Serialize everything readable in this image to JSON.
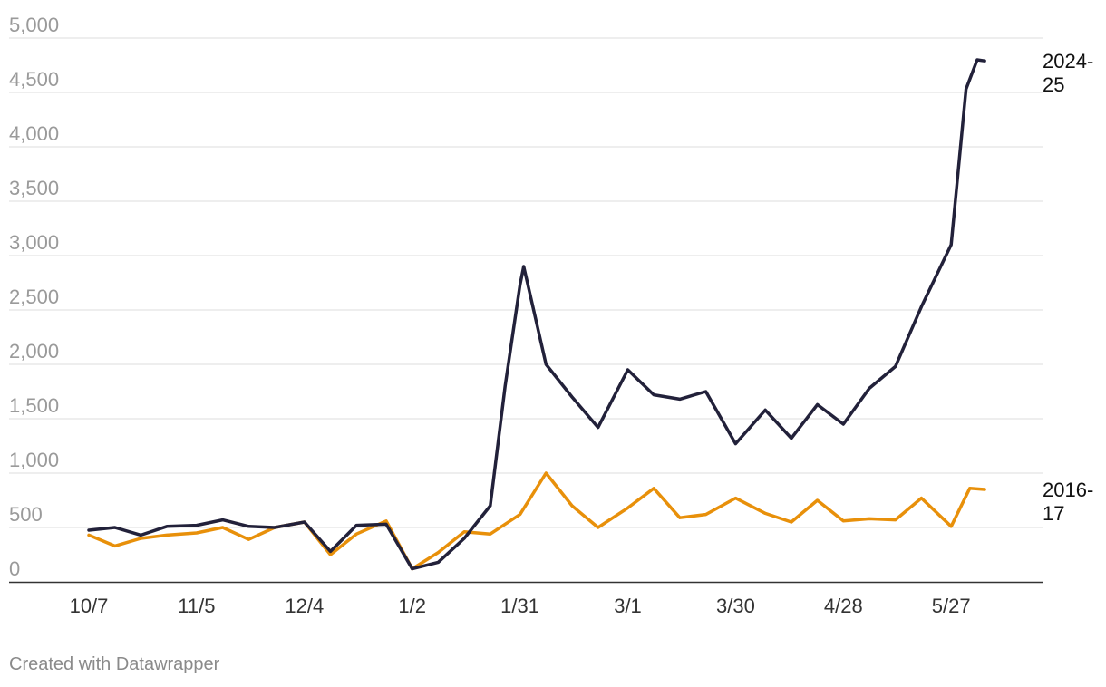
{
  "chart_data": {
    "type": "line",
    "title": "",
    "xlabel": "",
    "ylabel": "",
    "ylim": [
      0,
      5000
    ],
    "y_ticks": [
      {
        "value": 0,
        "label": "0"
      },
      {
        "value": 500,
        "label": "500"
      },
      {
        "value": 1000,
        "label": "1,000"
      },
      {
        "value": 1500,
        "label": "1,500"
      },
      {
        "value": 2000,
        "label": "2,000"
      },
      {
        "value": 2500,
        "label": "2,500"
      },
      {
        "value": 3000,
        "label": "3,000"
      },
      {
        "value": 3500,
        "label": "3,500"
      },
      {
        "value": 4000,
        "label": "4,000"
      },
      {
        "value": 4500,
        "label": "4,500"
      },
      {
        "value": 5000,
        "label": "5,000"
      }
    ],
    "x_ticks": [
      {
        "x": "10/7",
        "label": "10/7"
      },
      {
        "x": "11/5",
        "label": "11/5"
      },
      {
        "x": "12/4",
        "label": "12/4"
      },
      {
        "x": "1/2",
        "label": "1/2"
      },
      {
        "x": "1/31",
        "label": "1/31"
      },
      {
        "x": "3/1",
        "label": "3/1"
      },
      {
        "x": "3/30",
        "label": "3/30"
      },
      {
        "x": "4/28",
        "label": "4/28"
      },
      {
        "x": "5/27",
        "label": "5/27"
      }
    ],
    "grid": true,
    "legend": "labels at line ends (right)",
    "series": [
      {
        "name": "2024-25",
        "label_lines": [
          "2024-",
          "25"
        ],
        "color": "#22213a",
        "points": [
          [
            "10/7",
            475
          ],
          [
            "10/14",
            500
          ],
          [
            "10/21",
            430
          ],
          [
            "10/28",
            510
          ],
          [
            "11/5",
            520
          ],
          [
            "11/12",
            570
          ],
          [
            "11/19",
            510
          ],
          [
            "11/26",
            500
          ],
          [
            "12/4",
            550
          ],
          [
            "12/11",
            280
          ],
          [
            "12/18",
            520
          ],
          [
            "12/26",
            530
          ],
          [
            "1/2",
            120
          ],
          [
            "1/9",
            180
          ],
          [
            "1/16",
            400
          ],
          [
            "1/23",
            700
          ],
          [
            "1/27",
            1800
          ],
          [
            "1/31",
            2730
          ],
          [
            "2/1",
            2900
          ],
          [
            "2/7",
            2000
          ],
          [
            "2/14",
            1700
          ],
          [
            "2/21",
            1420
          ],
          [
            "3/1",
            1950
          ],
          [
            "3/8",
            1720
          ],
          [
            "3/15",
            1680
          ],
          [
            "3/22",
            1750
          ],
          [
            "3/30",
            1270
          ],
          [
            "4/7",
            1580
          ],
          [
            "4/14",
            1320
          ],
          [
            "4/21",
            1630
          ],
          [
            "4/28",
            1450
          ],
          [
            "5/5",
            1780
          ],
          [
            "5/12",
            1980
          ],
          [
            "5/19",
            2530
          ],
          [
            "5/27",
            3100
          ],
          [
            "5/31",
            4530
          ],
          [
            "6/3",
            4800
          ],
          [
            "6/5",
            4790
          ]
        ]
      },
      {
        "name": "2016-17",
        "label_lines": [
          "2016-",
          "17"
        ],
        "color": "#e8900a",
        "points": [
          [
            "10/7",
            430
          ],
          [
            "10/14",
            330
          ],
          [
            "10/21",
            400
          ],
          [
            "10/28",
            430
          ],
          [
            "11/5",
            450
          ],
          [
            "11/12",
            500
          ],
          [
            "11/19",
            390
          ],
          [
            "11/26",
            500
          ],
          [
            "12/4",
            550
          ],
          [
            "12/11",
            250
          ],
          [
            "12/18",
            440
          ],
          [
            "12/26",
            560
          ],
          [
            "1/2",
            120
          ],
          [
            "1/9",
            270
          ],
          [
            "1/16",
            460
          ],
          [
            "1/23",
            440
          ],
          [
            "1/31",
            620
          ],
          [
            "2/7",
            1000
          ],
          [
            "2/14",
            700
          ],
          [
            "2/21",
            500
          ],
          [
            "3/1",
            680
          ],
          [
            "3/8",
            860
          ],
          [
            "3/15",
            590
          ],
          [
            "3/22",
            620
          ],
          [
            "3/30",
            770
          ],
          [
            "4/7",
            630
          ],
          [
            "4/14",
            550
          ],
          [
            "4/21",
            750
          ],
          [
            "4/28",
            560
          ],
          [
            "5/5",
            580
          ],
          [
            "5/12",
            570
          ],
          [
            "5/19",
            770
          ],
          [
            "5/27",
            510
          ],
          [
            "6/1",
            860
          ],
          [
            "6/5",
            850
          ]
        ]
      }
    ]
  },
  "footer": {
    "credit": "Created with Datawrapper"
  }
}
